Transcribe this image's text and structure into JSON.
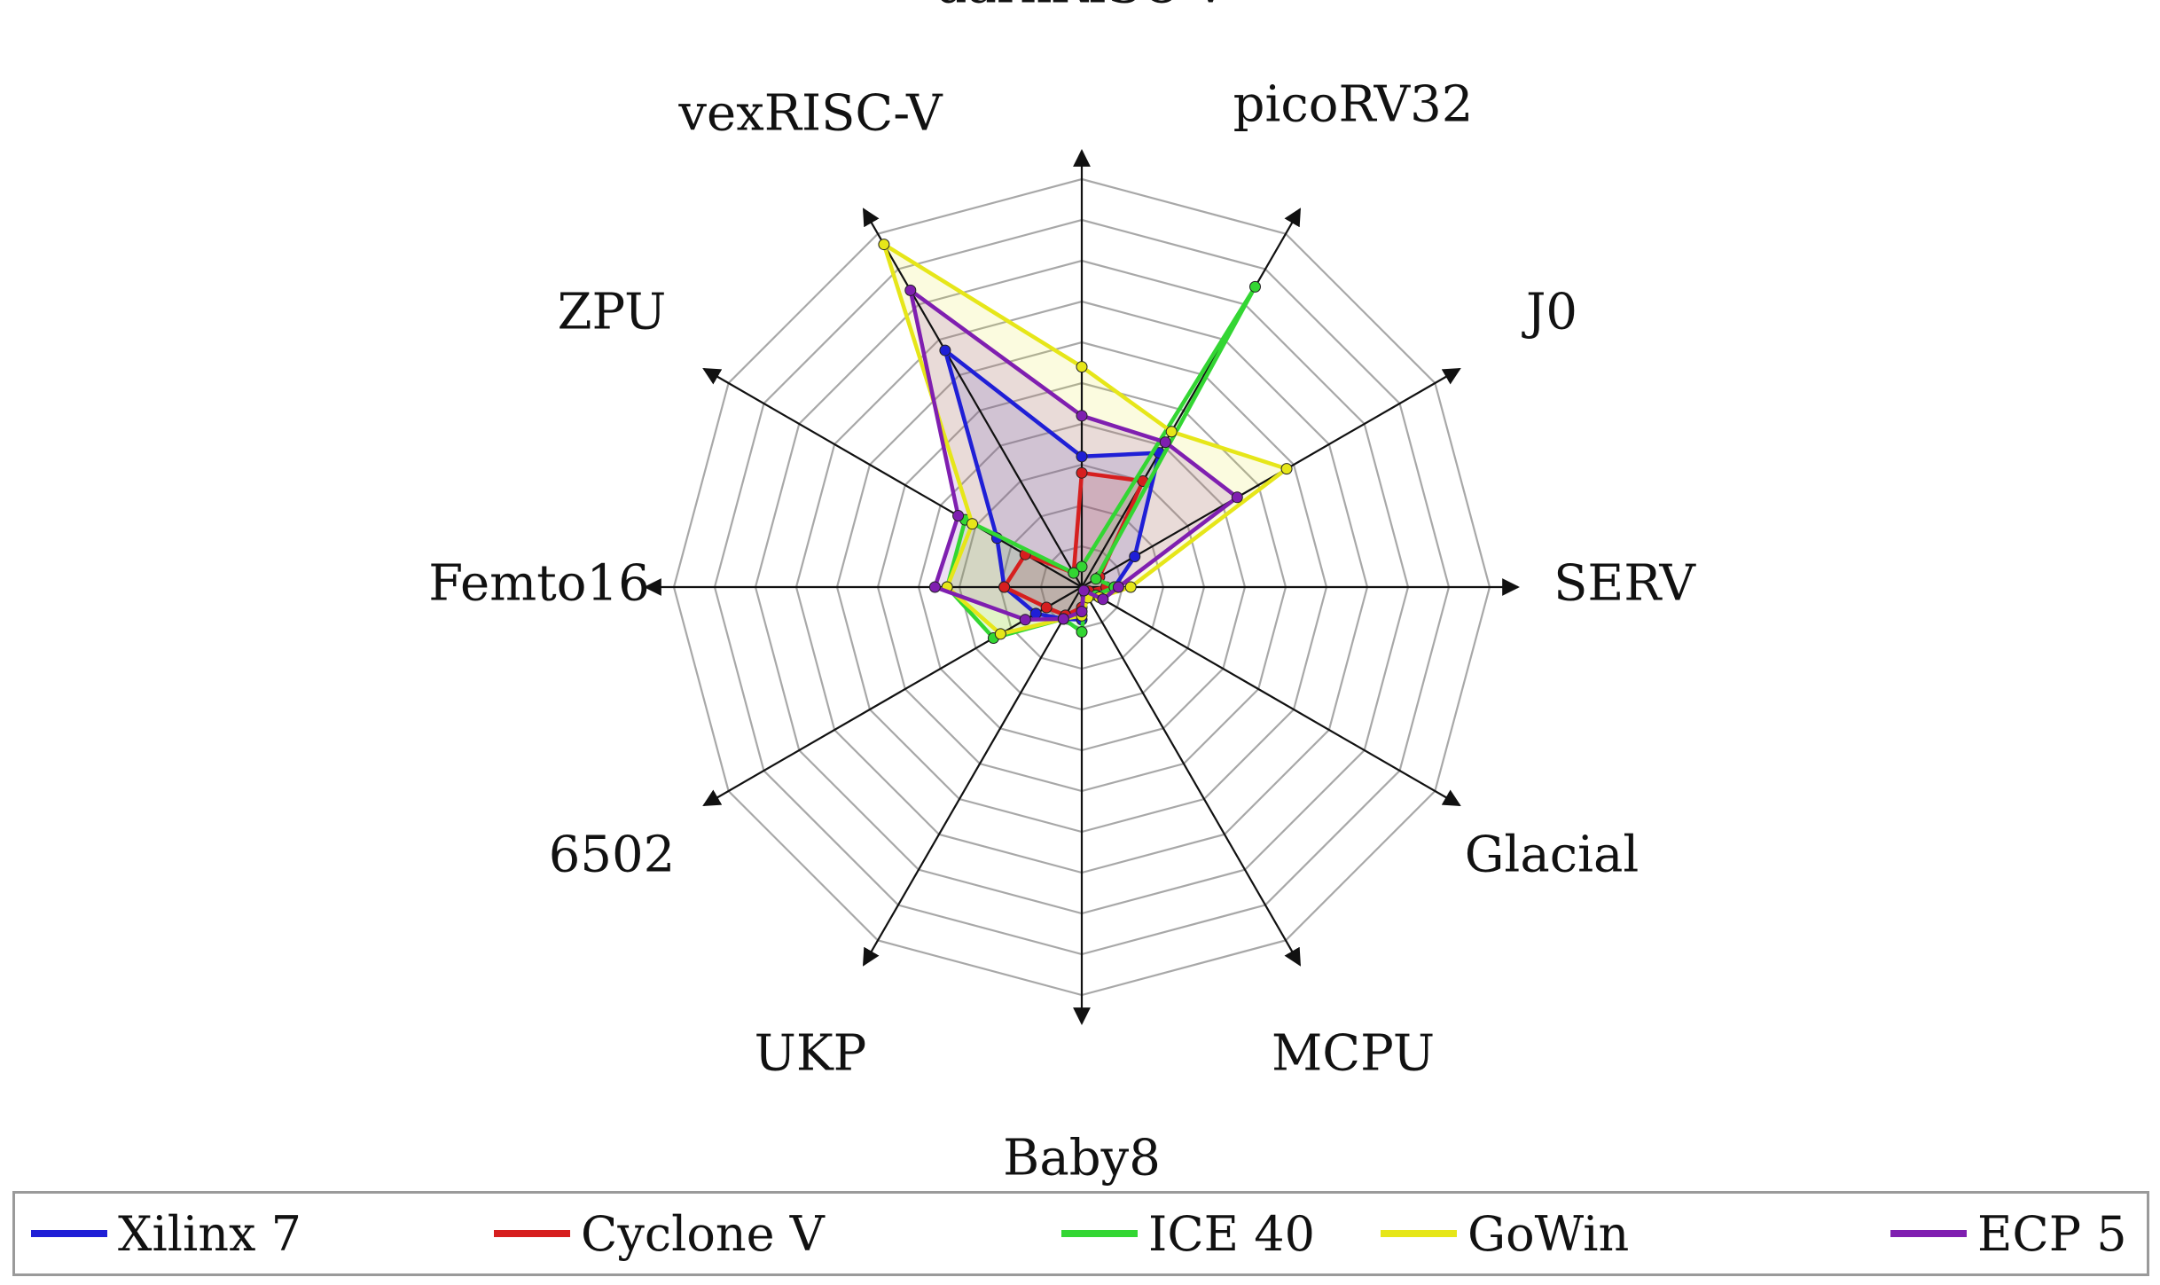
{
  "chart_data": {
    "type": "radar",
    "axes": [
      "darkRISC-V",
      "picoRV32",
      "J0",
      "SERV",
      "Glacial",
      "MCPU",
      "Baby8",
      "UKP",
      "6502",
      "Femto16",
      "ZPU",
      "vexRISC-V"
    ],
    "rmax": 10,
    "rings": 10,
    "grid": true,
    "legend_position": "bottom",
    "series": [
      {
        "name": "Xilinx 7",
        "color": "#1f1fd6",
        "values": [
          3.2,
          3.8,
          1.5,
          0.8,
          0.3,
          0.2,
          0.8,
          0.9,
          1.3,
          1.9,
          2.4,
          6.7
        ]
      },
      {
        "name": "Cyclone V",
        "color": "#d61f1f",
        "values": [
          2.8,
          3.0,
          0.5,
          0.6,
          0.2,
          0.1,
          0.5,
          0.8,
          1.0,
          1.9,
          1.6,
          0.4
        ]
      },
      {
        "name": "ICE 40",
        "color": "#33d633",
        "values": [
          0.5,
          8.5,
          0.4,
          0.8,
          0.4,
          0.2,
          1.1,
          0.9,
          2.5,
          3.3,
          3.3,
          0.4
        ]
      },
      {
        "name": "GoWin",
        "color": "#e6e619",
        "values": [
          5.4,
          4.4,
          5.8,
          1.2,
          0.5,
          0.3,
          0.7,
          0.9,
          2.3,
          3.3,
          3.1,
          9.7
        ]
      },
      {
        "name": "ECP 5",
        "color": "#7f1fb0",
        "values": [
          4.2,
          4.1,
          4.4,
          0.9,
          0.6,
          0.1,
          0.6,
          0.9,
          1.6,
          3.6,
          3.5,
          8.4
        ]
      }
    ]
  }
}
